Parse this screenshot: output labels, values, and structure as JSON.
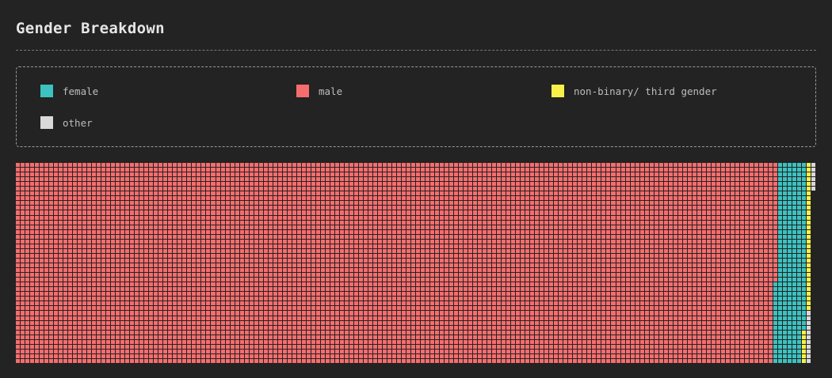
{
  "title": "Gender Breakdown",
  "chart_data": {
    "type": "waffle",
    "unit": "one cell = one respondent",
    "grid_rows": 42,
    "fill_order": "column-major, top-to-bottom, left-to-right",
    "series": [
      {
        "name": "male",
        "color": "#f76d6e",
        "count": 6703
      },
      {
        "name": "female",
        "color": "#3cc2c1",
        "count": 262
      },
      {
        "name": "non-binary/ third gender",
        "color": "#f9f04a",
        "count": 38
      },
      {
        "name": "other",
        "color": "#d9d9d9",
        "count": 17
      }
    ],
    "legend": [
      {
        "label": "female",
        "color": "#3cc2c1"
      },
      {
        "label": "male",
        "color": "#f76d6e"
      },
      {
        "label": "non-binary/ third gender",
        "color": "#f9f04a"
      },
      {
        "label": "other",
        "color": "#d9d9d9"
      }
    ],
    "legend_position": "top",
    "grid_line_color": "#222322"
  }
}
